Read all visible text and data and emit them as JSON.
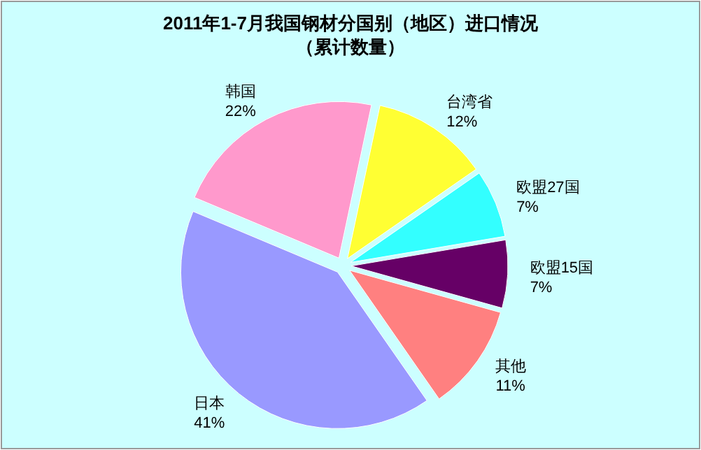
{
  "chart_data": {
    "type": "pie",
    "title": "2011年1-7月我国钢材分国别（地区）进口情况",
    "subtitle": "（累计数量）",
    "categories": [
      "台湾省",
      "欧盟27国",
      "欧盟15国",
      "其他",
      "日本",
      "韩国"
    ],
    "values": [
      12,
      7,
      7,
      11,
      41,
      22
    ],
    "value_labels": [
      "12%",
      "7%",
      "7%",
      "11%",
      "41%",
      "22%"
    ],
    "colors": [
      "#ffff33",
      "#33ffff",
      "#660066",
      "#ff8080",
      "#9999ff",
      "#ff99cc"
    ]
  }
}
